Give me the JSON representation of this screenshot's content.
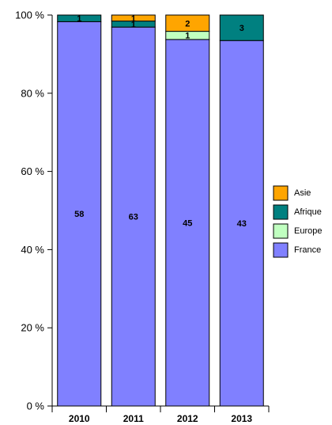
{
  "chart_data": {
    "type": "bar",
    "stacked": true,
    "normalized": true,
    "categories": [
      "2010",
      "2011",
      "2012",
      "2013"
    ],
    "series": [
      {
        "name": "France",
        "color": "#8080ff",
        "values": [
          58,
          63,
          45,
          43
        ]
      },
      {
        "name": "Europe",
        "color": "#c0ffc0",
        "values": [
          0,
          0,
          1,
          0
        ]
      },
      {
        "name": "Afrique",
        "color": "#008080",
        "values": [
          1,
          1,
          0,
          3
        ]
      },
      {
        "name": "Asie",
        "color": "#ffa500",
        "values": [
          0,
          1,
          2,
          0
        ]
      }
    ],
    "y_ticks": [
      "0 %",
      "20 %",
      "40 %",
      "60 %",
      "80 %",
      "100 %"
    ],
    "ylim": [
      0,
      100
    ],
    "legend_position": "right",
    "legend_order": [
      "Asie",
      "Afrique",
      "Europe",
      "France"
    ],
    "grid": false
  }
}
